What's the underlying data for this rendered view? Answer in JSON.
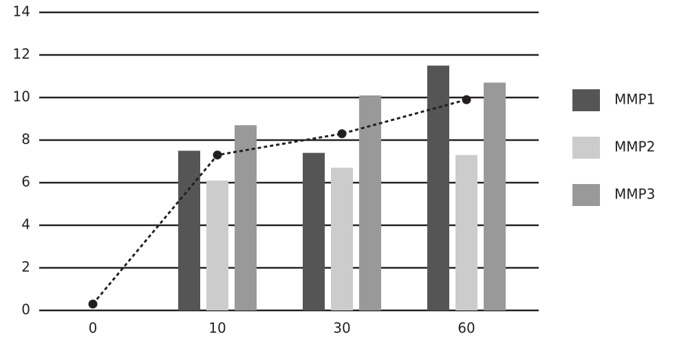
{
  "chart_data": {
    "type": "bar",
    "categories": [
      "0",
      "10",
      "30",
      "60"
    ],
    "series": [
      {
        "name": "MMP1",
        "color": "#555555",
        "values": [
          null,
          7.5,
          7.4,
          11.5
        ]
      },
      {
        "name": "MMP2",
        "color": "#cccccc",
        "values": [
          null,
          6.1,
          6.7,
          7.3
        ]
      },
      {
        "name": "MMP3",
        "color": "#999999",
        "values": [
          null,
          8.7,
          10.1,
          10.7
        ]
      }
    ],
    "line": {
      "color": "#231f20",
      "values": [
        0.3,
        7.3,
        8.3,
        9.9
      ]
    },
    "ylim": [
      0,
      14
    ],
    "yticks": [
      0,
      2,
      4,
      6,
      8,
      10,
      12,
      14
    ],
    "grid": true,
    "legend": "right"
  }
}
